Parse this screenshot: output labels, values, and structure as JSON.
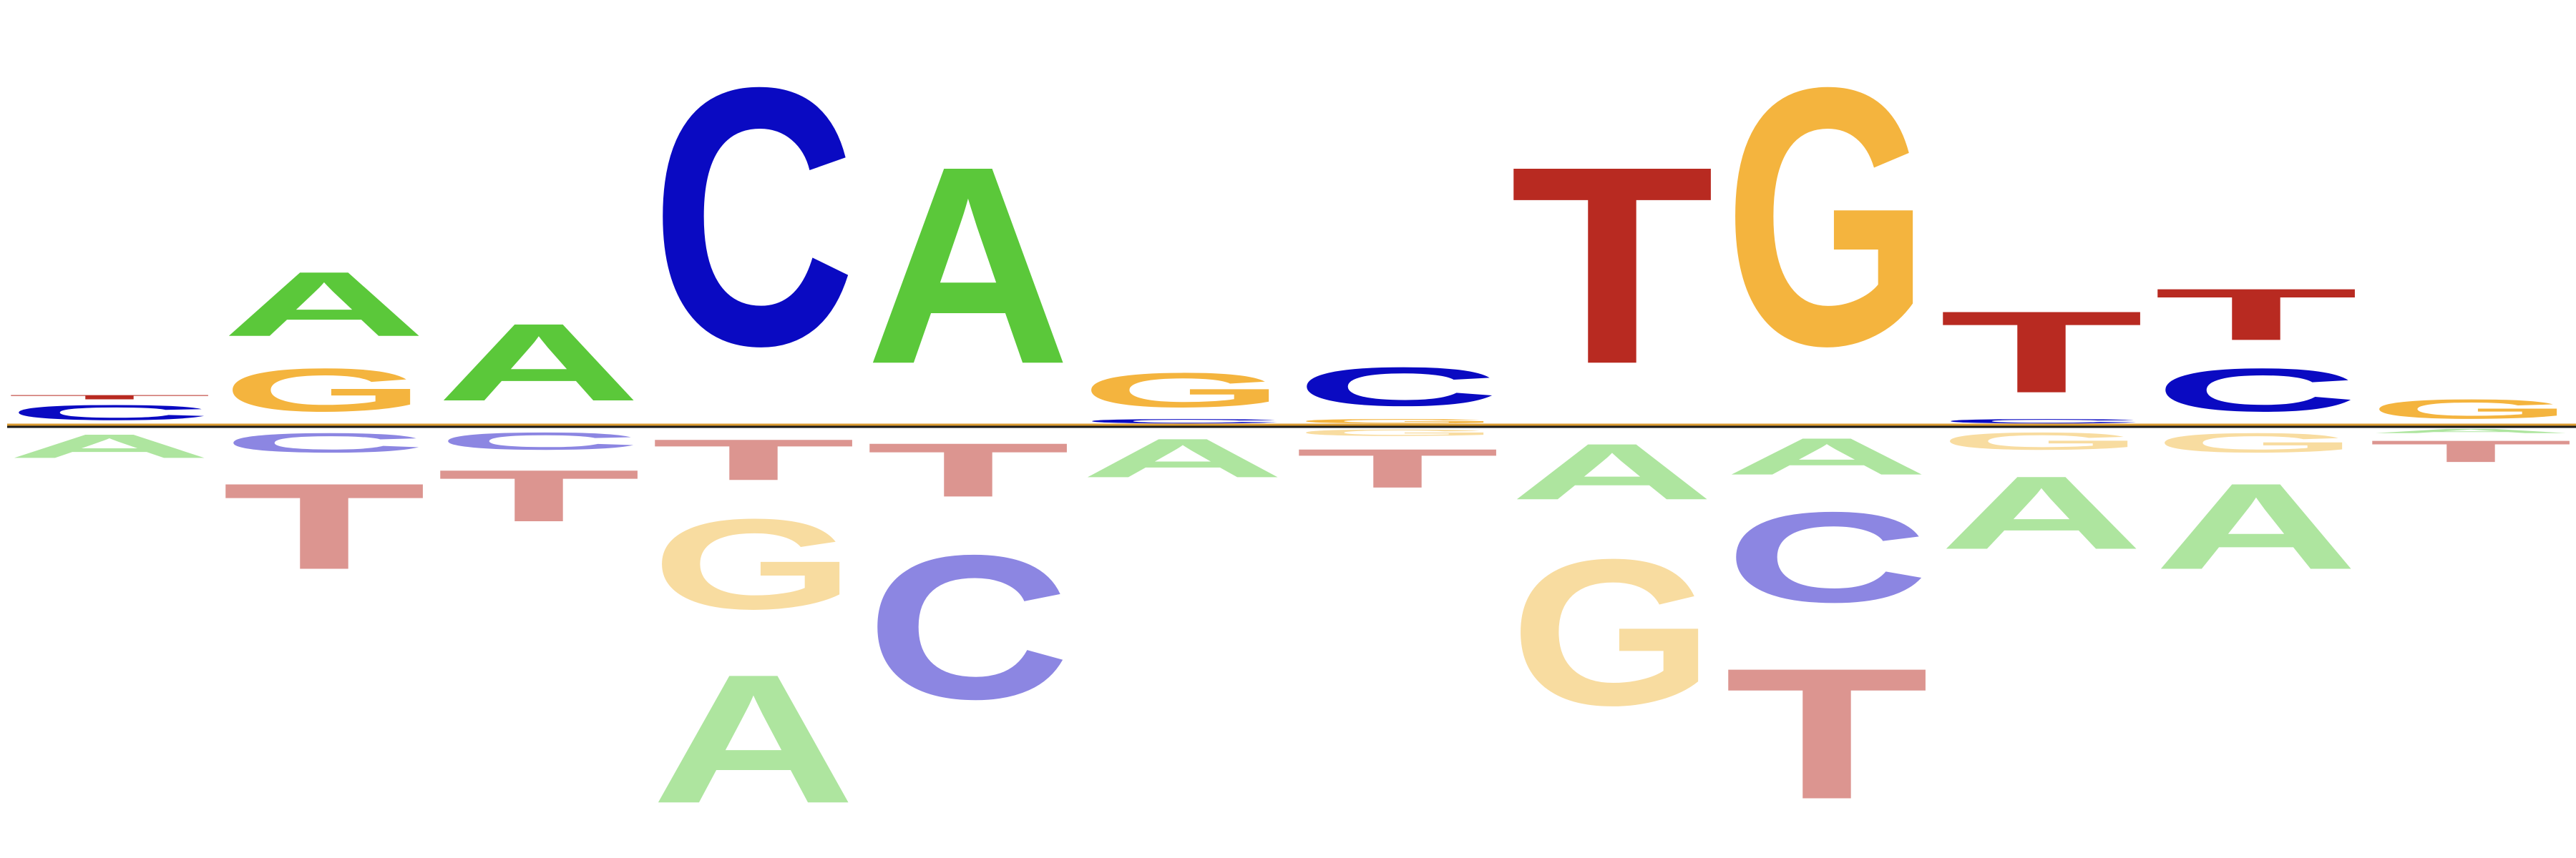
{
  "logo": {
    "type": "sequence-logo",
    "alphabet": [
      "A",
      "C",
      "G",
      "T"
    ],
    "colors": {
      "A": "#5bc83a",
      "C": "#0a0ac2",
      "G": "#f4b43e",
      "T": "#b82a21"
    },
    "depleted_colors": {
      "A": "#aee59f",
      "C": "#8c86e2",
      "G": "#f8dca0",
      "T": "#dc9590"
    },
    "baseline_colors": [
      "#d99a30",
      "#1a1a1a"
    ],
    "positions": [
      {
        "enriched": [
          {
            "letter": "C",
            "height": 0.35
          },
          {
            "letter": "T",
            "height": 0.1
          }
        ],
        "depleted": [
          {
            "letter": "A",
            "height": 0.55
          }
        ]
      },
      {
        "enriched": [
          {
            "letter": "G",
            "height": 1.0
          },
          {
            "letter": "A",
            "height": 1.5
          }
        ],
        "depleted": [
          {
            "letter": "C",
            "height": 0.45
          },
          {
            "letter": "T",
            "height": 2.0
          }
        ]
      },
      {
        "enriched": [
          {
            "letter": "A",
            "height": 1.8
          }
        ],
        "depleted": [
          {
            "letter": "C",
            "height": 0.4
          },
          {
            "letter": "T",
            "height": 1.2
          }
        ]
      },
      {
        "enriched": [
          {
            "letter": "C",
            "height": 6.0
          }
        ],
        "depleted": [
          {
            "letter": "T",
            "height": 0.95
          },
          {
            "letter": "G",
            "height": 2.1
          },
          {
            "letter": "A",
            "height": 3.0
          }
        ]
      },
      {
        "enriched": [
          {
            "letter": "A",
            "height": 4.6
          }
        ],
        "depleted": [
          {
            "letter": "T",
            "height": 1.25
          },
          {
            "letter": "C",
            "height": 3.35
          }
        ]
      },
      {
        "enriched": [
          {
            "letter": "C",
            "height": 0.1
          },
          {
            "letter": "G",
            "height": 0.8
          }
        ],
        "depleted": [
          {
            "letter": "A",
            "height": 0.9
          }
        ]
      },
      {
        "enriched": [
          {
            "letter": "G",
            "height": 0.1
          },
          {
            "letter": "C",
            "height": 0.9
          }
        ],
        "depleted": [
          {
            "letter": "G",
            "height": 0.15
          },
          {
            "letter": "T",
            "height": 0.9
          }
        ]
      },
      {
        "enriched": [
          {
            "letter": "T",
            "height": 4.6
          }
        ],
        "depleted": [
          {
            "letter": "A",
            "height": 1.3
          },
          {
            "letter": "G",
            "height": 3.4
          }
        ]
      },
      {
        "enriched": [
          {
            "letter": "G",
            "height": 6.0
          }
        ],
        "depleted": [
          {
            "letter": "A",
            "height": 0.85
          },
          {
            "letter": "C",
            "height": 2.1
          },
          {
            "letter": "T",
            "height": 3.05
          }
        ]
      },
      {
        "enriched": [
          {
            "letter": "C",
            "height": 0.1
          },
          {
            "letter": "T",
            "height": 1.9
          }
        ],
        "depleted": [
          {
            "letter": "G",
            "height": 0.4
          },
          {
            "letter": "A",
            "height": 1.7
          }
        ]
      },
      {
        "enriched": [
          {
            "letter": "C",
            "height": 1.0
          },
          {
            "letter": "T",
            "height": 1.2
          }
        ],
        "depleted": [
          {
            "letter": "G",
            "height": 0.45
          },
          {
            "letter": "A",
            "height": 2.0
          }
        ]
      },
      {
        "enriched": [
          {
            "letter": "G",
            "height": 0.45
          }
        ],
        "depleted": [
          {
            "letter": "A",
            "height": 0.1
          },
          {
            "letter": "T",
            "height": 0.5
          }
        ]
      }
    ]
  }
}
